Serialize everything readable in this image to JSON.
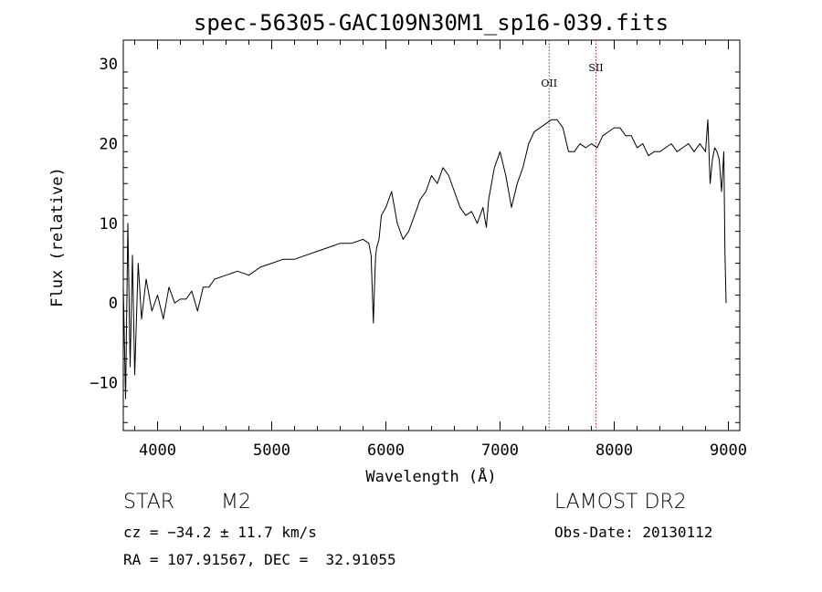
{
  "chart_data": {
    "type": "line",
    "title": "spec-56305-GAC109N30M1_sp16-039.fits",
    "xlabel": "Wavelength (Å)",
    "ylabel": "Flux (relative)",
    "xlim": [
      3700,
      9100
    ],
    "ylim": [
      -16,
      33
    ],
    "x_ticks": [
      4000,
      5000,
      6000,
      7000,
      8000,
      9000
    ],
    "y_ticks": [
      -10,
      0,
      10,
      20,
      30
    ],
    "x_tick_labels": [
      "4000",
      "5000",
      "6000",
      "7000",
      "8000",
      "9000"
    ],
    "y_tick_labels": [
      "−10",
      "0",
      "10",
      "20",
      "30"
    ],
    "grid": false,
    "series": [
      {
        "x": [
          3700,
          3720,
          3740,
          3760,
          3780,
          3800,
          3830,
          3860,
          3900,
          3950,
          4000,
          4050,
          4100,
          4150,
          4200,
          4250,
          4300,
          4350,
          4400,
          4450,
          4500,
          4600,
          4700,
          4800,
          4900,
          5000,
          5100,
          5200,
          5300,
          5400,
          5500,
          5600,
          5700,
          5800,
          5850,
          5870,
          5880,
          5890,
          5900,
          5910,
          5920,
          5940,
          5960,
          6000,
          6050,
          6100,
          6150,
          6200,
          6250,
          6300,
          6350,
          6400,
          6450,
          6500,
          6550,
          6600,
          6650,
          6700,
          6750,
          6800,
          6850,
          6880,
          6900,
          6950,
          7000,
          7050,
          7100,
          7150,
          7200,
          7250,
          7300,
          7350,
          7400,
          7450,
          7500,
          7550,
          7600,
          7650,
          7700,
          7750,
          7800,
          7850,
          7900,
          7950,
          8000,
          8050,
          8100,
          8150,
          8200,
          8250,
          8300,
          8350,
          8400,
          8450,
          8500,
          8550,
          8600,
          8650,
          8700,
          8750,
          8800,
          8820,
          8840,
          8860,
          8880,
          8900,
          8920,
          8940,
          8960,
          8970,
          8980
        ],
        "y": [
          2,
          -12,
          10,
          -8,
          6,
          -9,
          5,
          -2,
          3,
          -1,
          1,
          -2,
          2,
          0,
          0.5,
          0.5,
          1.5,
          -1,
          2,
          2,
          3,
          3.5,
          4,
          3.5,
          4.5,
          5,
          5.5,
          5.5,
          6,
          6.5,
          7,
          7.5,
          7.5,
          8,
          7.5,
          6,
          2,
          -2.5,
          2,
          6,
          7,
          8,
          11,
          12,
          14,
          10,
          8,
          9,
          11,
          13,
          14,
          16,
          15,
          17,
          16,
          14,
          12,
          11,
          11.5,
          10,
          12,
          9.5,
          13,
          17,
          19,
          16,
          12,
          15,
          17,
          20,
          21.5,
          22,
          22.5,
          23,
          23,
          22,
          19,
          19,
          20,
          19.5,
          20,
          19.5,
          21,
          21.5,
          22,
          22,
          21,
          21,
          19.5,
          20,
          18.5,
          19,
          19,
          19.5,
          20,
          19,
          19.5,
          20,
          19,
          20,
          19,
          23,
          15,
          18,
          19.5,
          19,
          18,
          14,
          19,
          6,
          0
        ]
      }
    ],
    "annotations": [
      {
        "label": "OII",
        "x": 7430,
        "style": "dotted vertical line",
        "color": "#b22222"
      },
      {
        "label": "SII",
        "x": 7840,
        "style": "dotted vertical line",
        "color": "#b22222"
      }
    ]
  },
  "info": {
    "object_class": "STAR",
    "subclass": "M2",
    "survey": "LAMOST DR2",
    "cz": "cz = −34.2 ± 11.7 km/s",
    "obs_date": "Obs-Date: 20130112",
    "coords": "RA = 107.91567, DEC =  32.91055"
  }
}
